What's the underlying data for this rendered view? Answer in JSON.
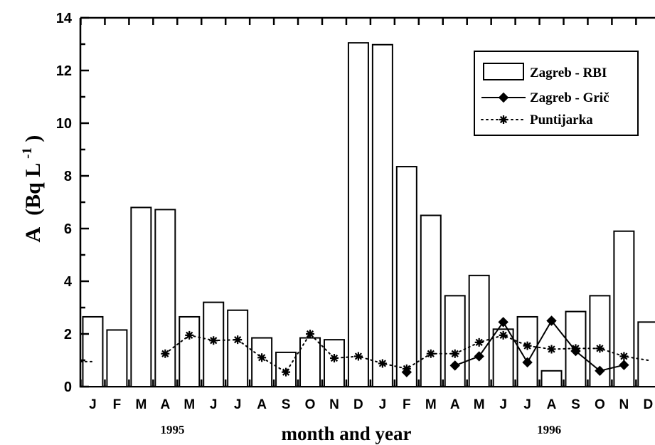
{
  "chart_data": {
    "type": "bar",
    "xlabel": "month and year",
    "ylabel": "A",
    "ylabel_units": "(Bq L",
    "ylabel_exp": "-1",
    "ylabel_close": ")",
    "ylim": [
      0,
      14
    ],
    "yticks": [
      "0",
      "2",
      "4",
      "6",
      "8",
      "10",
      "12",
      "14"
    ],
    "categories": [
      "J",
      "F",
      "M",
      "A",
      "M",
      "J",
      "J",
      "A",
      "S",
      "O",
      "N",
      "D",
      "J",
      "F",
      "M",
      "A",
      "M",
      "J",
      "J",
      "A",
      "S",
      "O",
      "N",
      "D"
    ],
    "years": [
      {
        "label": "1995",
        "center_index": 3.3
      },
      {
        "label": "1996",
        "center_index": 18.9
      }
    ],
    "series": [
      {
        "name": "Zagreb - RBI",
        "kind": "bar",
        "values": [
          2.65,
          2.15,
          6.8,
          6.72,
          2.65,
          3.2,
          2.9,
          1.85,
          1.3,
          1.85,
          1.78,
          13.05,
          12.98,
          8.35,
          6.5,
          3.45,
          4.22,
          2.18,
          2.65,
          0.6,
          2.85,
          3.45,
          5.9,
          2.45
        ]
      },
      {
        "name": "Zagreb - Grič",
        "kind": "line-solid-diamond",
        "values": [
          null,
          null,
          null,
          null,
          null,
          null,
          null,
          null,
          null,
          null,
          null,
          null,
          null,
          0.55,
          null,
          0.8,
          1.15,
          2.45,
          0.92,
          2.5,
          1.35,
          0.6,
          0.82,
          null
        ]
      },
      {
        "name": "Puntijarka",
        "kind": "line-dotted-asterisk",
        "values": [
          0.95,
          null,
          null,
          1.25,
          1.95,
          1.75,
          1.78,
          1.1,
          0.55,
          2.0,
          1.08,
          1.15,
          0.88,
          0.68,
          1.25,
          1.25,
          1.68,
          1.95,
          1.55,
          1.42,
          1.45,
          1.45,
          1.15,
          1.0
        ]
      }
    ],
    "legend_placement": "top-right",
    "grid": false
  }
}
